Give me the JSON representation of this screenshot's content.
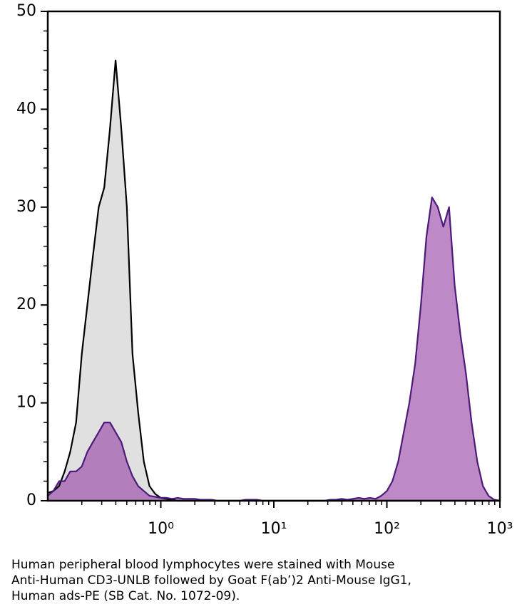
{
  "chart_data": {
    "type": "area",
    "log_x": true,
    "caption": [
      "Human peripheral blood lymphocytes were stained with Mouse",
      "Anti-Human CD3-UNLB followed by Goat F(ab’)2 Anti-Mouse IgG1,",
      "Human ads-PE (SB Cat. No. 1072-09)."
    ],
    "xlim": [
      0.1,
      1000
    ],
    "ylim": [
      0,
      50
    ],
    "xticks": [
      {
        "value": 1,
        "label": "10⁰"
      },
      {
        "value": 10,
        "label": "10¹"
      },
      {
        "value": 100,
        "label": "10²"
      },
      {
        "value": 1000,
        "label": "10³"
      }
    ],
    "xminorticks": [
      0.2,
      0.3,
      0.4,
      0.5,
      0.6,
      0.7,
      0.8,
      0.9,
      2,
      3,
      4,
      5,
      6,
      7,
      8,
      9,
      20,
      30,
      40,
      50,
      60,
      70,
      80,
      90,
      200,
      300,
      400,
      500,
      600,
      700,
      800,
      900
    ],
    "yticks": [
      0,
      10,
      20,
      30,
      40,
      50
    ],
    "yminorticks": [
      2,
      4,
      6,
      8,
      12,
      14,
      16,
      18,
      22,
      24,
      26,
      28,
      32,
      34,
      36,
      38,
      42,
      44,
      46,
      48
    ],
    "x": [
      0.1,
      0.112,
      0.126,
      0.141,
      0.158,
      0.178,
      0.2,
      0.224,
      0.251,
      0.282,
      0.316,
      0.355,
      0.398,
      0.447,
      0.501,
      0.562,
      0.631,
      0.708,
      0.794,
      0.891,
      1,
      1.12,
      1.26,
      1.41,
      1.58,
      1.78,
      2,
      2.24,
      2.51,
      2.82,
      3.16,
      3.55,
      3.98,
      4.47,
      5.01,
      5.62,
      6.31,
      7.08,
      7.94,
      8.91,
      10,
      11.2,
      12.6,
      14.1,
      15.8,
      17.8,
      20,
      22.4,
      25.1,
      28.2,
      31.6,
      35.5,
      39.8,
      44.7,
      50.1,
      56.2,
      63.1,
      70.8,
      79.4,
      89.1,
      100,
      112,
      126,
      141,
      158,
      178,
      200,
      224,
      251,
      282,
      316,
      355,
      398,
      447,
      501,
      562,
      631,
      708,
      794,
      891,
      1000
    ],
    "series": [
      {
        "color": "#000000",
        "fill": "#e0e0e0",
        "values": [
          0.8,
          1,
          1.5,
          3,
          5,
          8,
          15,
          20,
          25,
          30,
          32,
          38,
          45,
          38,
          30,
          15,
          9,
          4,
          1.5,
          0.7,
          0.3,
          0.2,
          0.1,
          0,
          0,
          0,
          0,
          0,
          0,
          0,
          0,
          0,
          0,
          0,
          0,
          0,
          0,
          0,
          0,
          0,
          0,
          0,
          0,
          0,
          0,
          0,
          0,
          0,
          0,
          0,
          0,
          0,
          0,
          0,
          0,
          0,
          0,
          0,
          0,
          0,
          0,
          0,
          0,
          0,
          0,
          0,
          0,
          0,
          0,
          0,
          0,
          0,
          0,
          0,
          0,
          0,
          0,
          0,
          0,
          0,
          0
        ]
      },
      {
        "color": "#4b1a7a",
        "fill": "#9a4aa8",
        "values": [
          0.5,
          1,
          2,
          2,
          3,
          3,
          3.5,
          5,
          6,
          7,
          8,
          8,
          7,
          6,
          4,
          2.5,
          1.5,
          1,
          0.5,
          0.4,
          0.3,
          0.3,
          0.2,
          0.3,
          0.2,
          0.2,
          0.2,
          0.1,
          0.1,
          0.1,
          0,
          0,
          0,
          0,
          0,
          0.1,
          0.1,
          0.1,
          0,
          0,
          0,
          0,
          0,
          0,
          0,
          0,
          0,
          0,
          0,
          0,
          0.1,
          0.1,
          0.2,
          0.1,
          0.2,
          0.3,
          0.2,
          0.3,
          0.2,
          0.5,
          1,
          2,
          4,
          7,
          10,
          14,
          20,
          27,
          31,
          30,
          28,
          30,
          22,
          17,
          13,
          8,
          4,
          1.5,
          0.5,
          0.1,
          0
        ]
      }
    ]
  }
}
